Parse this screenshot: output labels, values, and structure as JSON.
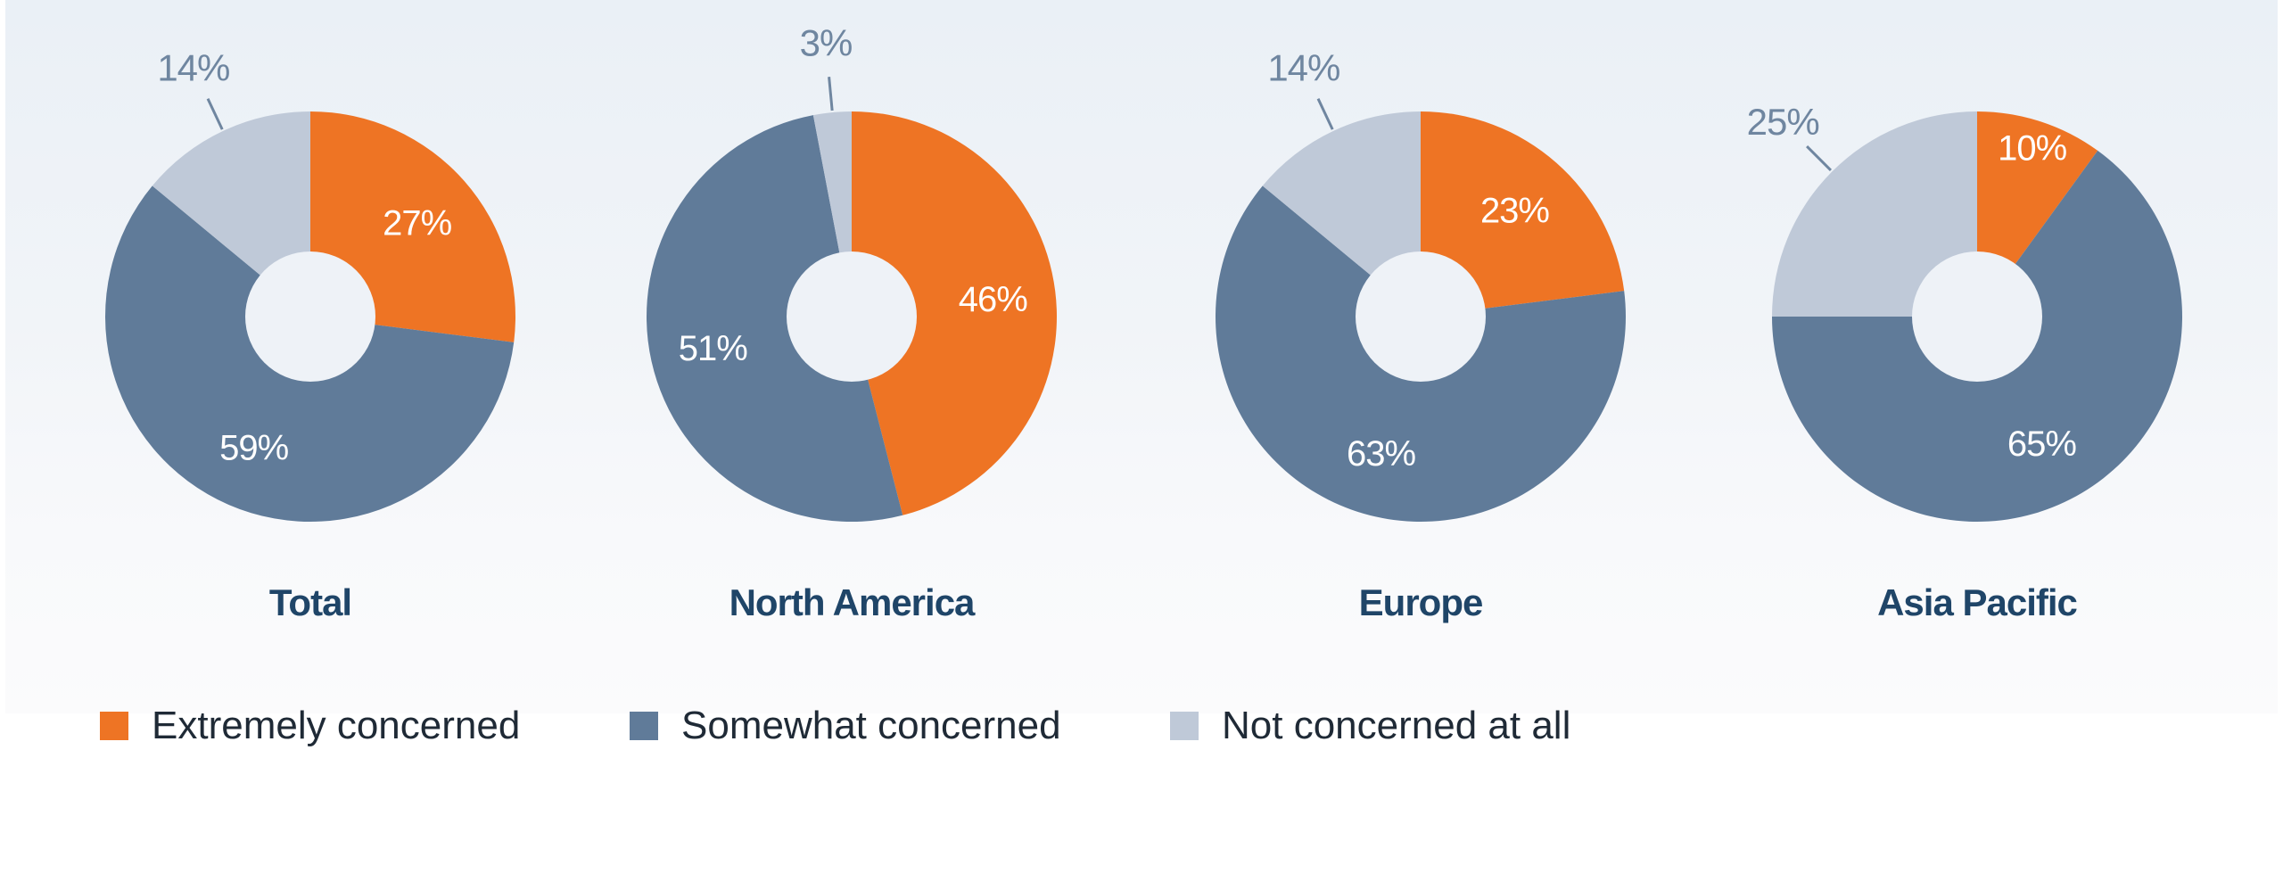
{
  "colors": {
    "extremely": "#ee7424",
    "somewhat": "#607b99",
    "not": "#bfc9d8",
    "hole": "#eef2f7",
    "outside_label": "#6f86a0",
    "title": "#1f4568"
  },
  "chart_data": {
    "type": "pie",
    "variant": "donut",
    "categories": [
      "Extremely concerned",
      "Somewhat concerned",
      "Not concerned at all"
    ],
    "legend": [
      "Extremely concerned",
      "Somewhat concerned",
      "Not concerned at all"
    ],
    "legend_placement": "bottom-left",
    "charts": [
      {
        "title": "Total",
        "values": [
          27,
          59,
          14
        ],
        "labels": [
          "27%",
          "59%",
          "14%"
        ]
      },
      {
        "title": "North America",
        "values": [
          46,
          51,
          3
        ],
        "labels": [
          "46%",
          "51%",
          "3%"
        ]
      },
      {
        "title": "Europe",
        "values": [
          23,
          63,
          14
        ],
        "labels": [
          "23%",
          "63%",
          "14%"
        ]
      },
      {
        "title": "Asia Pacific",
        "values": [
          10,
          65,
          25
        ],
        "labels": [
          "10%",
          "65%",
          "25%"
        ]
      }
    ]
  }
}
